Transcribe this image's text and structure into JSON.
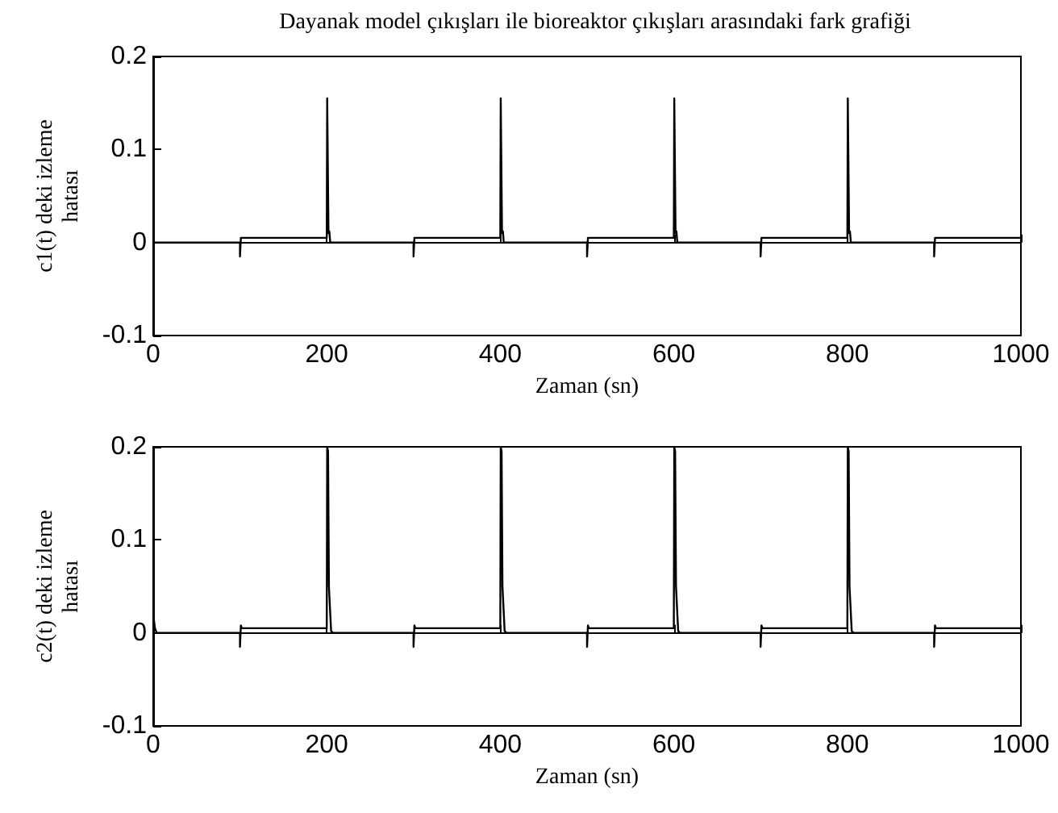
{
  "chart_data": [
    {
      "type": "line",
      "title": "Dayanak model çıkışları ile bioreaktor çıkışları arasındaki fark grafiği",
      "xlabel": "Zaman (sn)",
      "ylabel": "c1(t) deki izleme\nhatası",
      "marker": "none",
      "xlim": [
        0,
        1000
      ],
      "xticks": [
        0,
        200,
        400,
        600,
        800,
        1000
      ],
      "ylim": [
        -0.1,
        0.2
      ],
      "yticks": [
        -0.1,
        0,
        0.1,
        0.2
      ],
      "series": [
        {
          "color": "#000000",
          "x": [
            0,
            100,
            100,
            101,
            200,
            200.5,
            201.5,
            202,
            203,
            204,
            300,
            300,
            301,
            400,
            400.5,
            401.5,
            402,
            403,
            404,
            500,
            500,
            501,
            600,
            600.5,
            601.5,
            602,
            603,
            604,
            700,
            700,
            701,
            800,
            800.5,
            801.5,
            802,
            803,
            804,
            900,
            900,
            901,
            1000
          ],
          "values": [
            0,
            0,
            -0.015,
            0.005,
            0.005,
            0.155,
            0.155,
            0.01,
            0.012,
            0,
            0,
            -0.015,
            0.005,
            0.005,
            0.155,
            0.155,
            0.01,
            0.012,
            0,
            0,
            -0.015,
            0.005,
            0.005,
            0.155,
            0.155,
            0.01,
            0.012,
            0,
            0,
            -0.015,
            0.005,
            0.005,
            0.155,
            0.155,
            0.01,
            0.012,
            0,
            0,
            -0.015,
            0.005,
            0.005
          ]
        }
      ]
    },
    {
      "type": "line",
      "xlabel": "Zaman (sn)",
      "ylabel": "c2(t) deki izleme\nhatası",
      "marker": "none",
      "xlim": [
        0,
        1000
      ],
      "xticks": [
        0,
        200,
        400,
        600,
        800,
        1000
      ],
      "ylim": [
        -0.1,
        0.2
      ],
      "yticks": [
        -0.1,
        0,
        0.1,
        0.2
      ],
      "series": [
        {
          "color": "#000000",
          "x": [
            0,
            2,
            4,
            100,
            100,
            101,
            102,
            200,
            200.5,
            201.5,
            202.5,
            203.5,
            205,
            207,
            300,
            300,
            301,
            302,
            400,
            400.5,
            401.5,
            402.5,
            403.5,
            405,
            407,
            500,
            500,
            501,
            502,
            600,
            600.5,
            601.5,
            602.5,
            603.5,
            605,
            607,
            700,
            700,
            701,
            702,
            800,
            800.5,
            801.5,
            802.5,
            803.5,
            805,
            807,
            900,
            900,
            901,
            902,
            1000
          ],
          "values": [
            0.02,
            0.005,
            0,
            0,
            -0.015,
            0.008,
            0.005,
            0.005,
            0.2,
            0.195,
            0.05,
            0.05,
            0.002,
            0,
            0,
            -0.015,
            0.008,
            0.005,
            0.005,
            0.2,
            0.195,
            0.05,
            0.05,
            0.002,
            0,
            0,
            -0.015,
            0.008,
            0.005,
            0.005,
            0.2,
            0.195,
            0.05,
            0.05,
            0.002,
            0,
            0,
            -0.015,
            0.008,
            0.005,
            0.005,
            0.2,
            0.195,
            0.05,
            0.05,
            0.002,
            0,
            0,
            -0.015,
            0.008,
            0.005,
            0.005
          ]
        }
      ]
    }
  ]
}
